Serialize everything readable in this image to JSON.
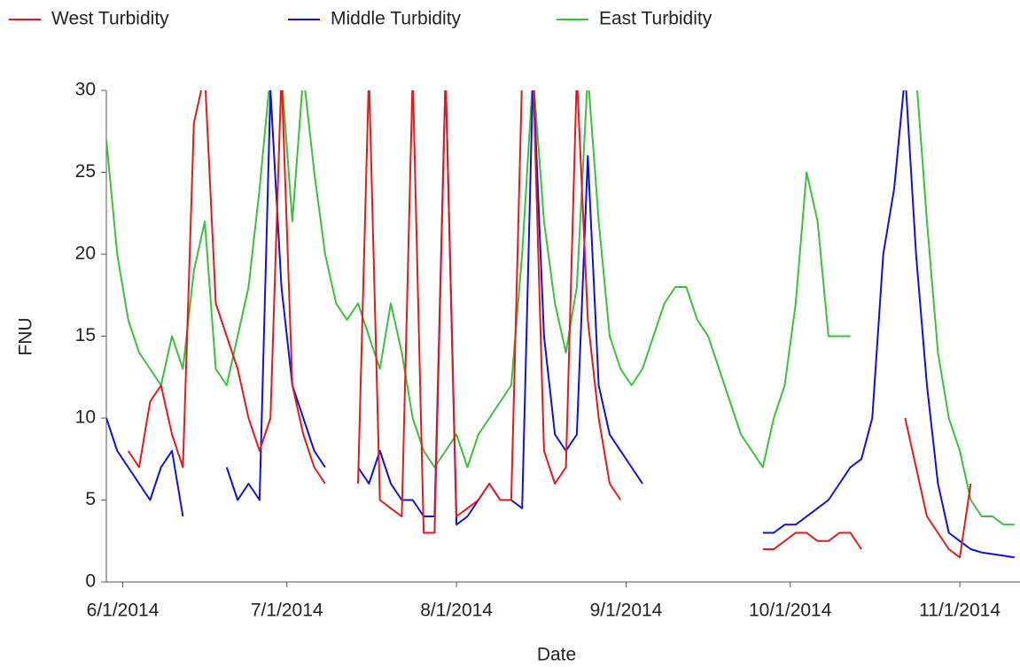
{
  "chart_data": {
    "type": "line",
    "x_label": "Date",
    "y_label": "FNU",
    "x": [
      "2014-05-29",
      "2014-05-31",
      "2014-06-02",
      "2014-06-04",
      "2014-06-06",
      "2014-06-08",
      "2014-06-10",
      "2014-06-12",
      "2014-06-14",
      "2014-06-16",
      "2014-06-18",
      "2014-06-20",
      "2014-06-22",
      "2014-06-24",
      "2014-06-26",
      "2014-06-28",
      "2014-06-30",
      "2014-07-02",
      "2014-07-04",
      "2014-07-06",
      "2014-07-08",
      "2014-07-10",
      "2014-07-12",
      "2014-07-14",
      "2014-07-16",
      "2014-07-18",
      "2014-07-20",
      "2014-07-22",
      "2014-07-24",
      "2014-07-26",
      "2014-07-28",
      "2014-07-30",
      "2014-08-01",
      "2014-08-03",
      "2014-08-05",
      "2014-08-07",
      "2014-08-09",
      "2014-08-11",
      "2014-08-13",
      "2014-08-15",
      "2014-08-17",
      "2014-08-19",
      "2014-08-21",
      "2014-08-23",
      "2014-08-25",
      "2014-08-27",
      "2014-08-29",
      "2014-08-31",
      "2014-09-02",
      "2014-09-04",
      "2014-09-06",
      "2014-09-08",
      "2014-09-10",
      "2014-09-12",
      "2014-09-14",
      "2014-09-16",
      "2014-09-18",
      "2014-09-20",
      "2014-09-22",
      "2014-09-24",
      "2014-09-26",
      "2014-09-28",
      "2014-09-30",
      "2014-10-02",
      "2014-10-04",
      "2014-10-06",
      "2014-10-08",
      "2014-10-10",
      "2014-10-12",
      "2014-10-14",
      "2014-10-16",
      "2014-10-18",
      "2014-10-20",
      "2014-10-22",
      "2014-10-24",
      "2014-10-26",
      "2014-10-28",
      "2014-10-30",
      "2014-11-01",
      "2014-11-03",
      "2014-11-05",
      "2014-11-07",
      "2014-11-09",
      "2014-11-11"
    ],
    "series": [
      {
        "name": "West Turbidity",
        "color": "#e31a1c",
        "values": [
          null,
          null,
          8,
          7,
          11,
          12,
          9,
          7,
          28,
          31,
          17,
          15,
          13,
          10,
          8,
          10,
          31,
          12,
          9,
          7,
          6,
          null,
          null,
          6,
          31,
          5,
          4.5,
          4,
          31,
          3,
          3,
          31,
          4,
          4.5,
          5,
          6,
          5,
          5,
          31,
          31,
          8,
          6,
          7,
          31,
          16,
          10,
          6,
          5,
          null,
          null,
          null,
          null,
          null,
          null,
          null,
          null,
          null,
          null,
          null,
          null,
          2,
          2,
          2.5,
          3,
          3,
          2.5,
          2.5,
          3,
          3,
          2,
          null,
          null,
          null,
          10,
          7,
          4,
          3,
          2,
          1.5,
          6,
          null,
          null,
          null,
          null
        ]
      },
      {
        "name": "Middle Turbidity",
        "color": "#1010d8",
        "values": [
          10,
          8,
          7,
          6,
          5,
          7,
          8,
          4,
          null,
          null,
          null,
          7,
          5,
          6,
          5,
          30,
          18,
          12,
          10,
          8,
          7,
          null,
          null,
          7,
          6,
          8,
          6,
          5,
          5,
          4,
          4,
          31,
          3.5,
          4,
          5,
          6,
          5,
          5,
          4.5,
          31,
          15,
          9,
          8,
          9,
          26,
          12,
          9,
          8,
          7,
          6,
          null,
          null,
          null,
          null,
          null,
          null,
          null,
          null,
          null,
          null,
          3,
          3,
          3.5,
          3.5,
          4,
          4.5,
          5,
          6,
          7,
          7.5,
          10,
          20,
          24,
          31,
          20,
          12,
          6,
          3,
          2.5,
          2,
          1.8,
          1.7,
          1.6,
          1.5
        ]
      },
      {
        "name": "East Turbidity",
        "color": "#3cc03c",
        "values": [
          27,
          20,
          16,
          14,
          13,
          12,
          15,
          13,
          19,
          22,
          13,
          12,
          15,
          18,
          24,
          31,
          31,
          22,
          31,
          25,
          20,
          17,
          16,
          17,
          15,
          13,
          17,
          14,
          10,
          8,
          7,
          8,
          9,
          7,
          9,
          10,
          11,
          12,
          20,
          31,
          22,
          17,
          14,
          18,
          31,
          22,
          15,
          13,
          12,
          13,
          15,
          17,
          18,
          18,
          16,
          15,
          13,
          11,
          9,
          8,
          7,
          10,
          12,
          17,
          25,
          22,
          15,
          15,
          15,
          null,
          null,
          null,
          null,
          31,
          31,
          22,
          14,
          10,
          8,
          5,
          4,
          4,
          3.5,
          3.5
        ]
      }
    ],
    "xlim": [
      "2014-05-29",
      "2014-11-12"
    ],
    "xticks": [
      {
        "value": "2014-06-01",
        "label": "6/1/2014"
      },
      {
        "value": "2014-07-01",
        "label": "7/1/2014"
      },
      {
        "value": "2014-08-01",
        "label": "8/1/2014"
      },
      {
        "value": "2014-09-01",
        "label": "9/1/2014"
      },
      {
        "value": "2014-10-01",
        "label": "10/1/2014"
      },
      {
        "value": "2014-11-01",
        "label": "11/1/2014"
      }
    ],
    "ylim": [
      0,
      30
    ],
    "yticks": [
      0,
      5,
      10,
      15,
      20,
      25,
      30
    ],
    "legend": "top"
  }
}
